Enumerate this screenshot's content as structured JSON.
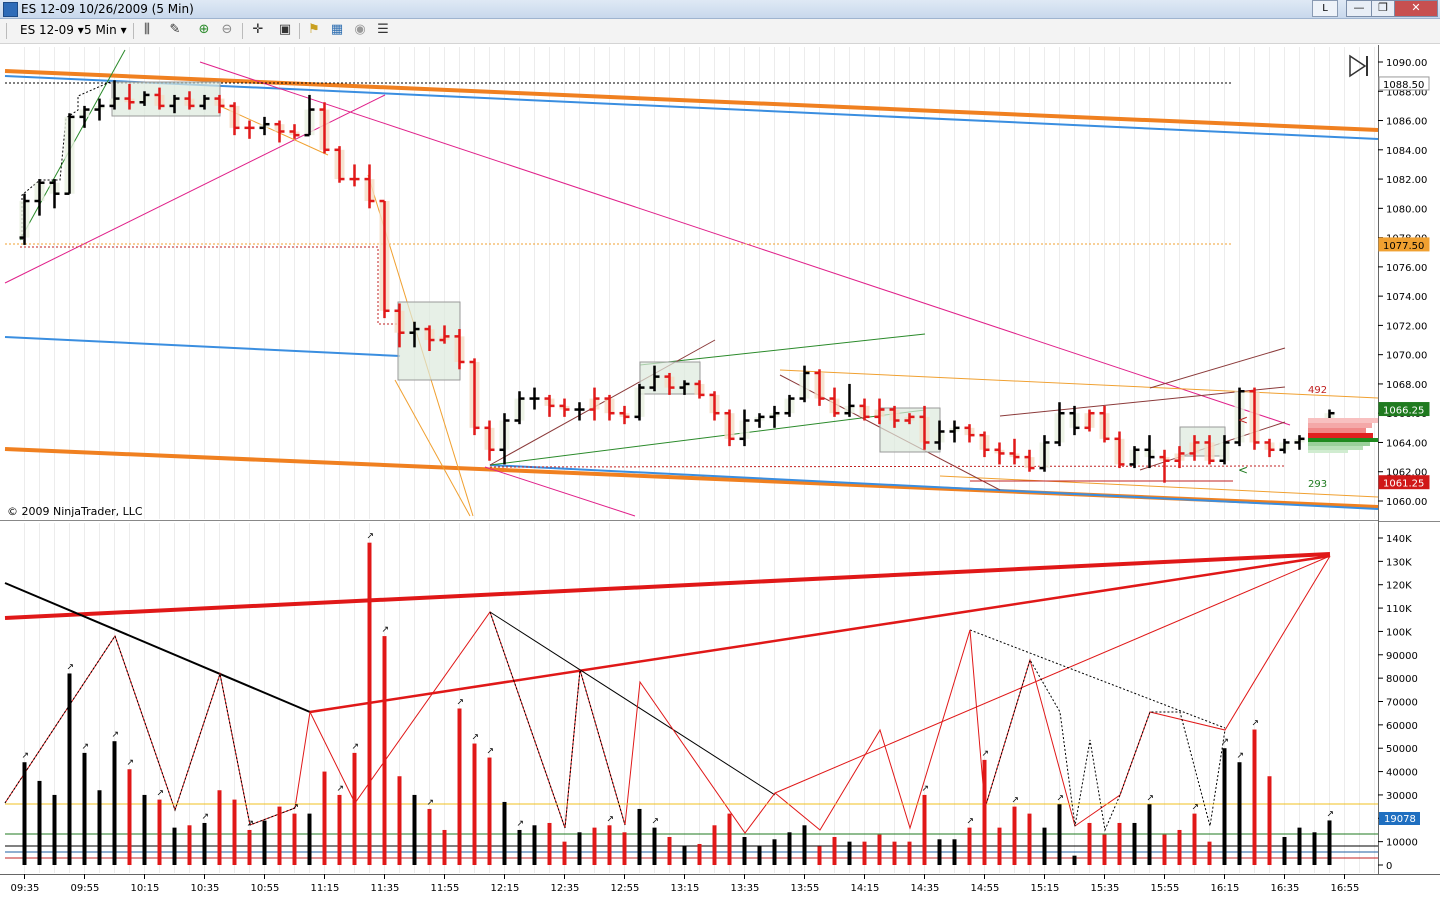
{
  "window": {
    "title": "ES 12-09  10/26/2009 (5 Min)",
    "l_button": "L",
    "min_glyph": "—",
    "max_glyph": "❐",
    "close_glyph": "✕"
  },
  "toolbar": {
    "instrument": "ES 12-09",
    "interval": "5 Min",
    "icons": [
      "bar-type-icon",
      "draw-pencil-icon",
      "zoom-in-icon",
      "zoom-out-icon",
      "crosshair-icon",
      "data-box-icon",
      "strategy-icon",
      "indicator-icon",
      "properties-icon",
      "chart-list-icon"
    ]
  },
  "price_panel": {
    "copyright": "© 2009 NinjaTrader, LLC",
    "price_labels": [
      "1090.00",
      "1088.00",
      "1086.00",
      "1084.00",
      "1082.00",
      "1080.00",
      "1078.00",
      "1076.00",
      "1074.00",
      "1072.00",
      "1070.00",
      "1068.00",
      "1066.00",
      "1064.00",
      "1062.00",
      "1060.00"
    ],
    "badges": [
      {
        "text": "1088.50",
        "bg": "#ffffff",
        "fg": "#000000",
        "price": 1088.5
      },
      {
        "text": "1077.50",
        "bg": "#f0a030",
        "fg": "#000000",
        "price": 1077.5
      },
      {
        "text": "1066.25",
        "bg": "#1f7a1f",
        "fg": "#ffffff",
        "price": 1066.25
      },
      {
        "text": "1061.25",
        "bg": "#d01818",
        "fg": "#ffffff",
        "price": 1061.25
      }
    ],
    "profile_top_value": "492",
    "profile_bottom_value": "293",
    "high_level_glyph": "<",
    "low_level_glyph": "<"
  },
  "volume_panel": {
    "labels": [
      "140K",
      "130K",
      "120K",
      "110K",
      "100K",
      "90000",
      "80000",
      "70000",
      "60000",
      "50000",
      "40000",
      "30000",
      "20000",
      "10000",
      "0"
    ],
    "current_badge": "19078",
    "current_badge_value": 19078,
    "bar_marker_glyph": "↗"
  },
  "time_axis": {
    "labels": [
      "09:35",
      "09:55",
      "10:15",
      "10:35",
      "10:55",
      "11:15",
      "11:35",
      "11:55",
      "12:15",
      "12:35",
      "12:55",
      "13:15",
      "13:35",
      "13:55",
      "14:15",
      "14:35",
      "14:55",
      "15:15",
      "15:35",
      "15:55",
      "16:15",
      "16:35",
      "16:55"
    ]
  },
  "chart_data": {
    "type": "candlestick_with_volume",
    "instrument": "ES 12-09",
    "date": "10/26/2009",
    "interval": "5 Min",
    "price_ylim": [
      1059,
      1091
    ],
    "volume_ylim": [
      0,
      145000
    ],
    "bars": [
      {
        "o": 1078,
        "h": 1081,
        "l": 1077.5,
        "c": 1080.5,
        "v": 44000,
        "up": true
      },
      {
        "o": 1080.5,
        "h": 1082,
        "l": 1079.5,
        "c": 1081.75,
        "v": 36000,
        "up": true
      },
      {
        "o": 1081.75,
        "h": 1082,
        "l": 1080,
        "c": 1081,
        "v": 30000,
        "up": true
      },
      {
        "o": 1081,
        "h": 1086.5,
        "l": 1081,
        "c": 1086.25,
        "v": 82000,
        "up": true
      },
      {
        "o": 1086.25,
        "h": 1087,
        "l": 1085.5,
        "c": 1086.75,
        "v": 48000,
        "up": true
      },
      {
        "o": 1086.75,
        "h": 1087.5,
        "l": 1086,
        "c": 1087,
        "v": 32000,
        "up": true
      },
      {
        "o": 1087,
        "h": 1088.75,
        "l": 1086.75,
        "c": 1087.5,
        "v": 53000,
        "up": true
      },
      {
        "o": 1087.5,
        "h": 1088.5,
        "l": 1086.75,
        "c": 1087.25,
        "v": 41000,
        "up": false
      },
      {
        "o": 1087.25,
        "h": 1088,
        "l": 1087,
        "c": 1087.75,
        "v": 30000,
        "up": true
      },
      {
        "o": 1087.75,
        "h": 1088.25,
        "l": 1086.75,
        "c": 1087,
        "v": 28000,
        "up": false
      },
      {
        "o": 1087,
        "h": 1087.75,
        "l": 1086.5,
        "c": 1087.5,
        "v": 16000,
        "up": true
      },
      {
        "o": 1087.5,
        "h": 1088,
        "l": 1086.75,
        "c": 1087,
        "v": 17000,
        "up": false
      },
      {
        "o": 1087,
        "h": 1087.75,
        "l": 1086.75,
        "c": 1087.5,
        "v": 18000,
        "up": true
      },
      {
        "o": 1087.5,
        "h": 1087.75,
        "l": 1086.5,
        "c": 1087,
        "v": 32000,
        "up": false
      },
      {
        "o": 1087,
        "h": 1087.25,
        "l": 1085,
        "c": 1085.5,
        "v": 28000,
        "up": false
      },
      {
        "o": 1085.5,
        "h": 1086,
        "l": 1084.75,
        "c": 1085.5,
        "v": 15000,
        "up": false
      },
      {
        "o": 1085.5,
        "h": 1086.25,
        "l": 1085,
        "c": 1085.75,
        "v": 19000,
        "up": true
      },
      {
        "o": 1085.75,
        "h": 1086,
        "l": 1084.5,
        "c": 1085.25,
        "v": 25000,
        "up": false
      },
      {
        "o": 1085.25,
        "h": 1085.75,
        "l": 1084.75,
        "c": 1085,
        "v": 22000,
        "up": false
      },
      {
        "o": 1085,
        "h": 1087.75,
        "l": 1085,
        "c": 1086.75,
        "v": 22000,
        "up": true
      },
      {
        "o": 1086.75,
        "h": 1087.25,
        "l": 1083.75,
        "c": 1084,
        "v": 40000,
        "up": false
      },
      {
        "o": 1084,
        "h": 1084.25,
        "l": 1081.75,
        "c": 1082,
        "v": 30000,
        "up": false
      },
      {
        "o": 1082,
        "h": 1083,
        "l": 1081.5,
        "c": 1082,
        "v": 48000,
        "up": false
      },
      {
        "o": 1082,
        "h": 1083,
        "l": 1080,
        "c": 1080.5,
        "v": 138000,
        "up": false
      },
      {
        "o": 1080.5,
        "h": 1080.5,
        "l": 1072.5,
        "c": 1073,
        "v": 98000,
        "up": false
      },
      {
        "o": 1073,
        "h": 1073.5,
        "l": 1070.5,
        "c": 1071.5,
        "v": 38000,
        "up": false
      },
      {
        "o": 1071.5,
        "h": 1072.25,
        "l": 1070.5,
        "c": 1071.75,
        "v": 30000,
        "up": true
      },
      {
        "o": 1071.75,
        "h": 1072,
        "l": 1070.25,
        "c": 1071,
        "v": 24000,
        "up": false
      },
      {
        "o": 1071,
        "h": 1072,
        "l": 1070.75,
        "c": 1071.25,
        "v": 15000,
        "up": false
      },
      {
        "o": 1071.25,
        "h": 1071.75,
        "l": 1069,
        "c": 1069.5,
        "v": 67000,
        "up": false
      },
      {
        "o": 1069.5,
        "h": 1069.75,
        "l": 1064.5,
        "c": 1065,
        "v": 52000,
        "up": false
      },
      {
        "o": 1065,
        "h": 1065.5,
        "l": 1062.75,
        "c": 1063.5,
        "v": 46000,
        "up": false
      },
      {
        "o": 1063.5,
        "h": 1066,
        "l": 1062.5,
        "c": 1065.5,
        "v": 27000,
        "up": true
      },
      {
        "o": 1065.5,
        "h": 1067.5,
        "l": 1065.25,
        "c": 1067,
        "v": 15000,
        "up": true
      },
      {
        "o": 1067,
        "h": 1067.75,
        "l": 1066.25,
        "c": 1067,
        "v": 17000,
        "up": true
      },
      {
        "o": 1067,
        "h": 1067.25,
        "l": 1065.75,
        "c": 1066.5,
        "v": 18000,
        "up": false
      },
      {
        "o": 1066.5,
        "h": 1067,
        "l": 1065.75,
        "c": 1066.25,
        "v": 10000,
        "up": false
      },
      {
        "o": 1066.25,
        "h": 1066.75,
        "l": 1065.5,
        "c": 1066.25,
        "v": 14000,
        "up": true
      },
      {
        "o": 1066.25,
        "h": 1067.75,
        "l": 1065.5,
        "c": 1067,
        "v": 16000,
        "up": false
      },
      {
        "o": 1067,
        "h": 1067.25,
        "l": 1065.5,
        "c": 1066,
        "v": 17000,
        "up": false
      },
      {
        "o": 1066,
        "h": 1066.5,
        "l": 1065.25,
        "c": 1065.75,
        "v": 14000,
        "up": false
      },
      {
        "o": 1065.75,
        "h": 1068,
        "l": 1065.5,
        "c": 1067.75,
        "v": 24000,
        "up": true
      },
      {
        "o": 1067.75,
        "h": 1069.25,
        "l": 1067.5,
        "c": 1068.5,
        "v": 16000,
        "up": true
      },
      {
        "o": 1068.5,
        "h": 1068.75,
        "l": 1067.25,
        "c": 1067.75,
        "v": 12000,
        "up": false
      },
      {
        "o": 1067.75,
        "h": 1068.25,
        "l": 1067.25,
        "c": 1068,
        "v": 8000,
        "up": true
      },
      {
        "o": 1068,
        "h": 1068.25,
        "l": 1067,
        "c": 1067.25,
        "v": 9000,
        "up": false
      },
      {
        "o": 1067.25,
        "h": 1067.5,
        "l": 1065.5,
        "c": 1066,
        "v": 17000,
        "up": false
      },
      {
        "o": 1066,
        "h": 1066.25,
        "l": 1063.75,
        "c": 1064.25,
        "v": 22000,
        "up": false
      },
      {
        "o": 1064.25,
        "h": 1066.25,
        "l": 1063.75,
        "c": 1065.5,
        "v": 12000,
        "up": true
      },
      {
        "o": 1065.5,
        "h": 1066,
        "l": 1065,
        "c": 1065.75,
        "v": 8000,
        "up": true
      },
      {
        "o": 1065.75,
        "h": 1066.5,
        "l": 1065,
        "c": 1066,
        "v": 11000,
        "up": true
      },
      {
        "o": 1066,
        "h": 1067.25,
        "l": 1065.75,
        "c": 1067,
        "v": 14000,
        "up": true
      },
      {
        "o": 1067,
        "h": 1069.25,
        "l": 1066.75,
        "c": 1068.75,
        "v": 17000,
        "up": true
      },
      {
        "o": 1068.75,
        "h": 1069,
        "l": 1066.5,
        "c": 1067,
        "v": 8000,
        "up": false
      },
      {
        "o": 1067,
        "h": 1067.75,
        "l": 1065.75,
        "c": 1066,
        "v": 12000,
        "up": false
      },
      {
        "o": 1066,
        "h": 1068,
        "l": 1065.75,
        "c": 1066.5,
        "v": 10000,
        "up": true
      },
      {
        "o": 1066.5,
        "h": 1067,
        "l": 1065.5,
        "c": 1065.75,
        "v": 10000,
        "up": false
      },
      {
        "o": 1065.75,
        "h": 1067,
        "l": 1065.25,
        "c": 1066.25,
        "v": 13000,
        "up": false
      },
      {
        "o": 1066.25,
        "h": 1066.5,
        "l": 1065,
        "c": 1065.5,
        "v": 10000,
        "up": false
      },
      {
        "o": 1065.5,
        "h": 1066,
        "l": 1065.25,
        "c": 1065.75,
        "v": 10000,
        "up": false
      },
      {
        "o": 1065.75,
        "h": 1066.5,
        "l": 1063.5,
        "c": 1064,
        "v": 30000,
        "up": false
      },
      {
        "o": 1064,
        "h": 1065.5,
        "l": 1063.5,
        "c": 1064.75,
        "v": 11000,
        "up": true
      },
      {
        "o": 1064.75,
        "h": 1065.5,
        "l": 1064,
        "c": 1065,
        "v": 11000,
        "up": true
      },
      {
        "o": 1065,
        "h": 1065.25,
        "l": 1064,
        "c": 1064.5,
        "v": 16000,
        "up": false
      },
      {
        "o": 1064.5,
        "h": 1064.75,
        "l": 1063,
        "c": 1063.5,
        "v": 45000,
        "up": false
      },
      {
        "o": 1063.5,
        "h": 1064,
        "l": 1062.5,
        "c": 1063.25,
        "v": 16000,
        "up": false
      },
      {
        "o": 1063.25,
        "h": 1064.25,
        "l": 1062.5,
        "c": 1063,
        "v": 25000,
        "up": false
      },
      {
        "o": 1063,
        "h": 1063.5,
        "l": 1062,
        "c": 1062.25,
        "v": 22000,
        "up": false
      },
      {
        "o": 1062.25,
        "h": 1064.5,
        "l": 1062,
        "c": 1064,
        "v": 16000,
        "up": true
      },
      {
        "o": 1064,
        "h": 1066.75,
        "l": 1063.75,
        "c": 1066,
        "v": 26000,
        "up": true
      },
      {
        "o": 1066,
        "h": 1066.5,
        "l": 1064.5,
        "c": 1065,
        "v": 4000,
        "up": true
      },
      {
        "o": 1065,
        "h": 1066.25,
        "l": 1064.75,
        "c": 1066,
        "v": 18000,
        "up": false
      },
      {
        "o": 1066,
        "h": 1066.5,
        "l": 1064,
        "c": 1064.25,
        "v": 13000,
        "up": false
      },
      {
        "o": 1064.25,
        "h": 1064.75,
        "l": 1062.25,
        "c": 1062.5,
        "v": 18000,
        "up": false
      },
      {
        "o": 1062.5,
        "h": 1063.75,
        "l": 1062.25,
        "c": 1063.5,
        "v": 18000,
        "up": true
      },
      {
        "o": 1063.5,
        "h": 1064.5,
        "l": 1062.25,
        "c": 1063,
        "v": 26000,
        "up": true
      },
      {
        "o": 1063,
        "h": 1063.5,
        "l": 1061.25,
        "c": 1062.75,
        "v": 13000,
        "up": false
      },
      {
        "o": 1062.75,
        "h": 1063.75,
        "l": 1062.25,
        "c": 1063.25,
        "v": 15000,
        "up": false
      },
      {
        "o": 1063.25,
        "h": 1064.5,
        "l": 1062.75,
        "c": 1064,
        "v": 22000,
        "up": false
      },
      {
        "o": 1064,
        "h": 1064.5,
        "l": 1062.5,
        "c": 1062.75,
        "v": 10000,
        "up": false
      },
      {
        "o": 1062.75,
        "h": 1064.5,
        "l": 1062.5,
        "c": 1064,
        "v": 50000,
        "up": true
      },
      {
        "o": 1064,
        "h": 1067.75,
        "l": 1063.75,
        "c": 1067.5,
        "v": 44000,
        "up": true
      },
      {
        "o": 1067.5,
        "h": 1067.75,
        "l": 1063.5,
        "c": 1064,
        "v": 58000,
        "up": false
      },
      {
        "o": 1064,
        "h": 1064.25,
        "l": 1063,
        "c": 1063.5,
        "v": 38000,
        "up": false
      },
      {
        "o": 1063.5,
        "h": 1064.25,
        "l": 1063.25,
        "c": 1064,
        "v": 12000,
        "up": true
      },
      {
        "o": 1064,
        "h": 1064.5,
        "l": 1063.5,
        "c": 1064.25,
        "v": 16000,
        "up": true
      },
      {
        "o": 1064.25,
        "h": 1064.75,
        "l": 1063.75,
        "c": 1064.5,
        "v": 14000,
        "up": true
      },
      {
        "o": 1064.5,
        "h": 1066.25,
        "l": 1064.25,
        "c": 1066,
        "v": 19078,
        "up": true
      }
    ]
  }
}
